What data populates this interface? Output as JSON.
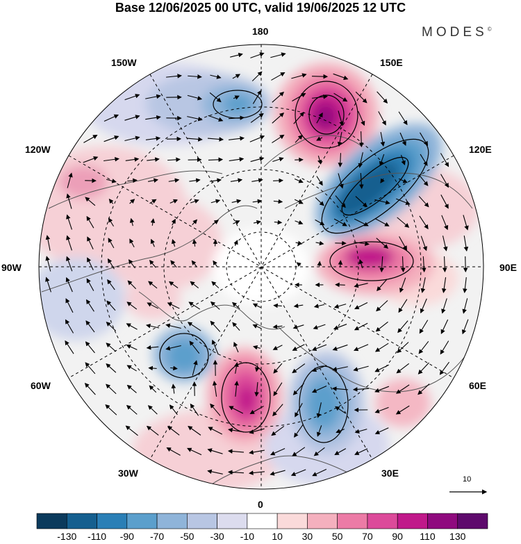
{
  "title": "Base 12/06/2025 00 UTC, valid 19/06/2025 12 UTC",
  "brand": {
    "name": "MODES",
    "mark": "©"
  },
  "longitude_labels": [
    {
      "id": "180",
      "text": "180"
    },
    {
      "id": "150E",
      "text": "150E"
    },
    {
      "id": "120E",
      "text": "120E"
    },
    {
      "id": "90E",
      "text": "90E"
    },
    {
      "id": "60E",
      "text": "60E"
    },
    {
      "id": "30E",
      "text": "30E"
    },
    {
      "id": "0",
      "text": "0"
    },
    {
      "id": "30W",
      "text": "30W"
    },
    {
      "id": "60W",
      "text": "60W"
    },
    {
      "id": "90W",
      "text": "90W"
    },
    {
      "id": "120W",
      "text": "120W"
    },
    {
      "id": "150W",
      "text": "150W"
    }
  ],
  "vector_reference": {
    "value": "10"
  },
  "colorbar": {
    "ticks": [
      "-130",
      "-110",
      "-90",
      "-70",
      "-50",
      "-30",
      "-10",
      "10",
      "30",
      "50",
      "70",
      "90",
      "110",
      "130"
    ],
    "colors": [
      "#0b3a5c",
      "#155f8f",
      "#2b7fb6",
      "#5b9fcc",
      "#8fb4d9",
      "#b8c6e3",
      "#dcdcee",
      "#ffffff",
      "#fadada",
      "#f4b0be",
      "#ec7ba6",
      "#dc4a9a",
      "#c0198a",
      "#8f0a7e",
      "#5e0a6c"
    ]
  },
  "colors": {
    "land_outline": "#555555",
    "grid": "#000000",
    "land_fill": "#eeeeee"
  }
}
